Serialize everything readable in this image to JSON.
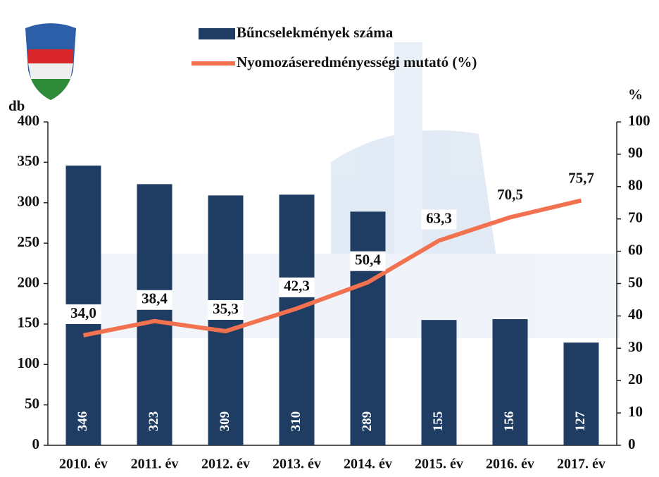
{
  "chart_data": {
    "type": "bar",
    "categories": [
      "2010. év",
      "2011. év",
      "2012. év",
      "2013. év",
      "2014. év",
      "2015. év",
      "2016. év",
      "2017. év"
    ],
    "series": [
      {
        "name": "Bűncselekmények száma",
        "color": "#1f3d63",
        "type": "bar",
        "axis": "y",
        "values": [
          346,
          323,
          309,
          310,
          289,
          155,
          156,
          127
        ]
      },
      {
        "name": "Nyomozáseredményességi mutató (%)",
        "color": "#f2724f",
        "type": "line",
        "axis": "y2",
        "values": [
          34.0,
          38.4,
          35.3,
          42.3,
          50.4,
          63.3,
          70.5,
          75.7
        ],
        "value_labels": [
          "34,0",
          "38,4",
          "35,3",
          "42,3",
          "50,4",
          "63,3",
          "70,5",
          "75,7"
        ]
      }
    ],
    "ylabel": "db",
    "y2label": "%",
    "ylim": [
      0,
      400
    ],
    "yticks": [
      0,
      50,
      100,
      150,
      200,
      250,
      300,
      350,
      400
    ],
    "y2lim": [
      0,
      100
    ],
    "y2ticks": [
      0,
      10,
      20,
      30,
      40,
      50,
      60,
      70,
      80,
      90,
      100
    ],
    "legend": "top"
  }
}
